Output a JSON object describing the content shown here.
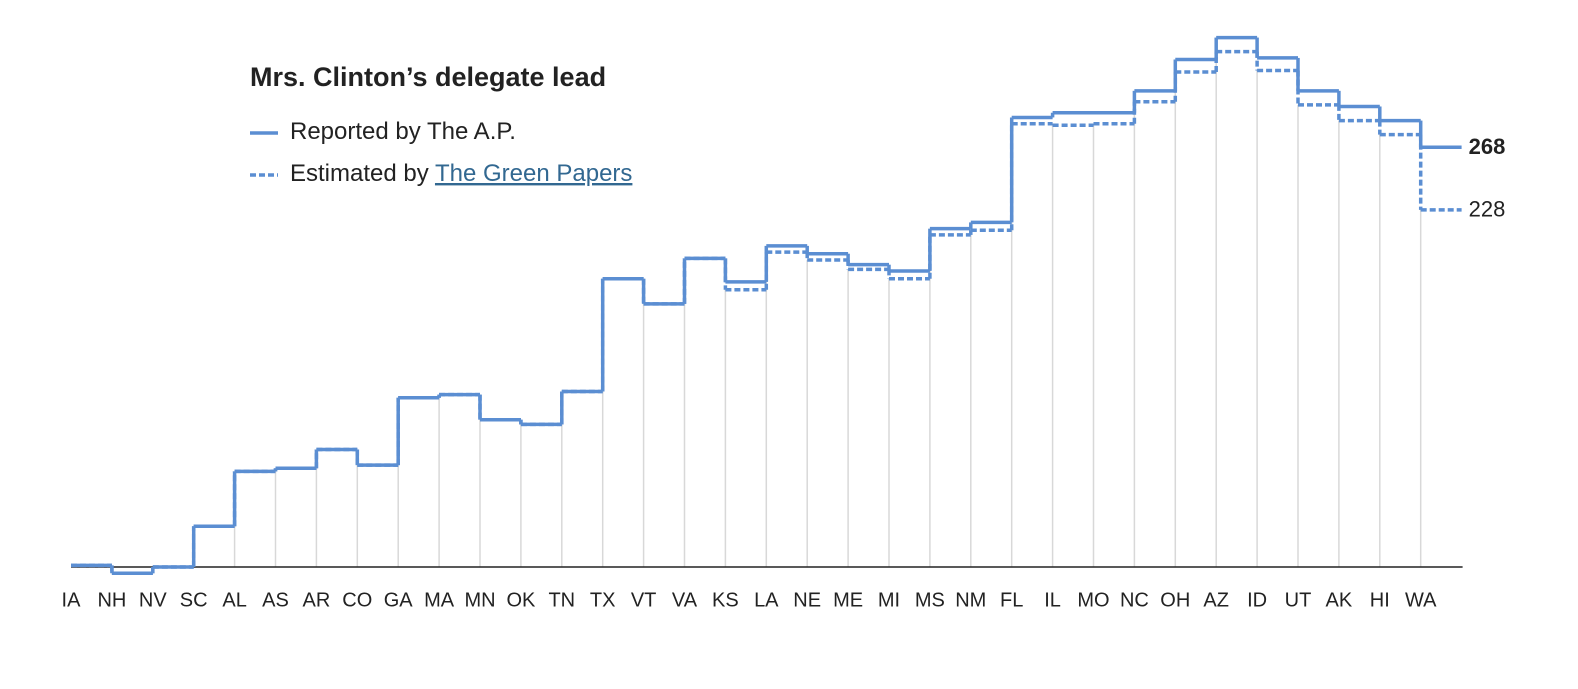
{
  "chart_data": {
    "type": "step",
    "title": "Mrs. Clinton’s delegate lead",
    "categories": [
      "IA",
      "NH",
      "NV",
      "SC",
      "AL",
      "AS",
      "AR",
      "CO",
      "GA",
      "MA",
      "MN",
      "OK",
      "TN",
      "TX",
      "VT",
      "VA",
      "KS",
      "LA",
      "NE",
      "ME",
      "MI",
      "MS",
      "NM",
      "FL",
      "IL",
      "MO",
      "NC",
      "OH",
      "AZ",
      "ID",
      "UT",
      "AK",
      "HI",
      "WA"
    ],
    "series": [
      {
        "name": "Reported by The A.P.",
        "color": "#5b8ed2",
        "dashed": false,
        "values": [
          1,
          -4,
          0,
          26,
          61,
          63,
          75,
          65,
          108,
          110,
          94,
          91,
          112,
          184,
          168,
          197,
          182,
          205,
          200,
          193,
          189,
          216,
          220,
          287,
          290,
          290,
          304,
          324,
          338,
          325,
          304,
          294,
          285,
          268
        ]
      },
      {
        "name": "Estimated by",
        "link": "The Green Papers",
        "color": "#5b8ed2",
        "dashed": true,
        "values": [
          1,
          -4,
          0,
          26,
          61,
          63,
          75,
          65,
          108,
          110,
          94,
          91,
          112,
          184,
          168,
          197,
          177,
          201,
          196,
          190,
          184,
          212,
          215,
          283,
          282,
          283,
          297,
          316,
          329,
          317,
          295,
          285,
          276,
          228
        ]
      }
    ],
    "ylim": [
      -5,
      345
    ]
  }
}
